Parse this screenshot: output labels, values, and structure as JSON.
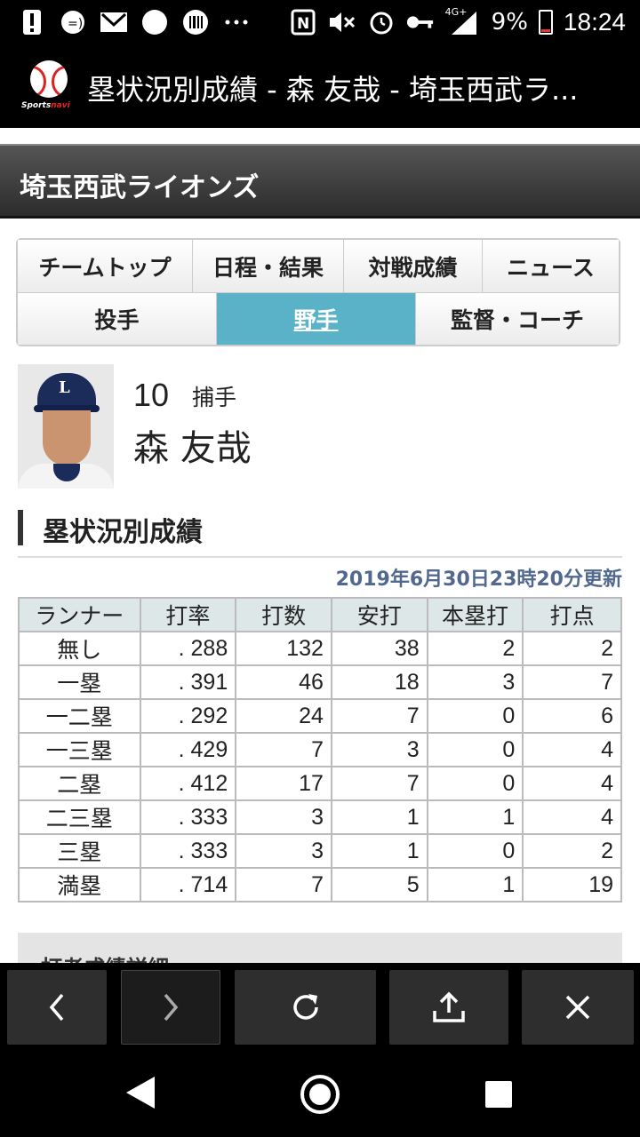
{
  "status_bar": {
    "icons": [
      "alert-icon",
      "messenger-icon",
      "gmail-icon",
      "app-icon",
      "barcode-icon",
      "more-icon",
      "nfc-icon",
      "mute-icon",
      "alarm-icon",
      "key-icon",
      "signal-icon"
    ],
    "network": "4G+",
    "battery": "9%",
    "time": "18:24"
  },
  "browser": {
    "logo_text_a": "Sports",
    "logo_text_b": "navi",
    "title": "塁状況別成績 - 森 友哉 - 埼玉西武ラ..."
  },
  "page": {
    "team_name": "埼玉西武ライオンズ",
    "nav_row1": [
      "チームトップ",
      "日程・結果",
      "対戦成績",
      "ニュース"
    ],
    "nav_row2": [
      "投手",
      "野手",
      "監督・コーチ"
    ],
    "player": {
      "number": "10",
      "position": "捕手",
      "name": "森 友哉"
    },
    "section_title": "塁状況別成績",
    "updated": "2019年6月30日23時20分更新",
    "table": {
      "headers": [
        "ランナー",
        "打率",
        "打数",
        "安打",
        "本塁打",
        "打点"
      ],
      "rows": [
        [
          "無し",
          ". 288",
          "132",
          "38",
          "2",
          "2"
        ],
        [
          "一塁",
          ". 391",
          "46",
          "18",
          "3",
          "7"
        ],
        [
          "一二塁",
          ". 292",
          "24",
          "7",
          "0",
          "6"
        ],
        [
          "一三塁",
          ". 429",
          "7",
          "3",
          "0",
          "4"
        ],
        [
          "二塁",
          ". 412",
          "17",
          "7",
          "0",
          "4"
        ],
        [
          "二三塁",
          ". 333",
          "3",
          "1",
          "1",
          "4"
        ],
        [
          "三塁",
          ". 333",
          "3",
          "1",
          "0",
          "2"
        ],
        [
          "満塁",
          ". 714",
          "7",
          "5",
          "1",
          "19"
        ]
      ]
    },
    "next_section": "打者成績詳細"
  },
  "colors": {
    "active_tab": "#5ab2c8",
    "updated_text": "#51688f",
    "table_header": "#dde7e7"
  }
}
